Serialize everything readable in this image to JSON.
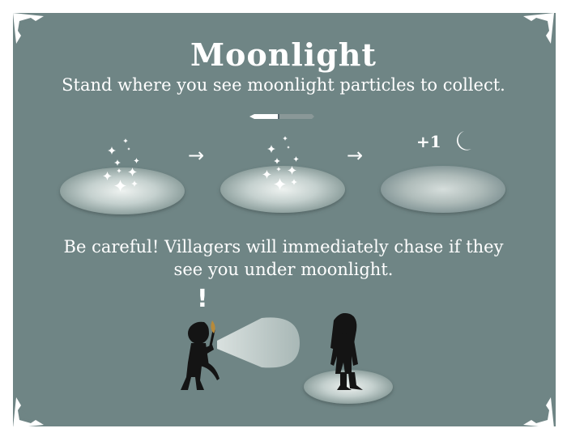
{
  "title": "Moonlight",
  "subtitle": "Stand where you see moonlight particles to collect.",
  "steps": {
    "arrow_1": "→",
    "arrow_2": "→",
    "reward_text": "+1"
  },
  "collect_progress": 0.45,
  "warning": {
    "line_1": "Be careful! Villagers will immediately chase if they",
    "line_2": "see you under moonlight."
  },
  "alert_mark": "!",
  "colors": {
    "panel": "#6f8585",
    "text": "#ffffff",
    "ellipse_center": "#e6ecea",
    "ellipse_edge": "#8fa19f"
  }
}
